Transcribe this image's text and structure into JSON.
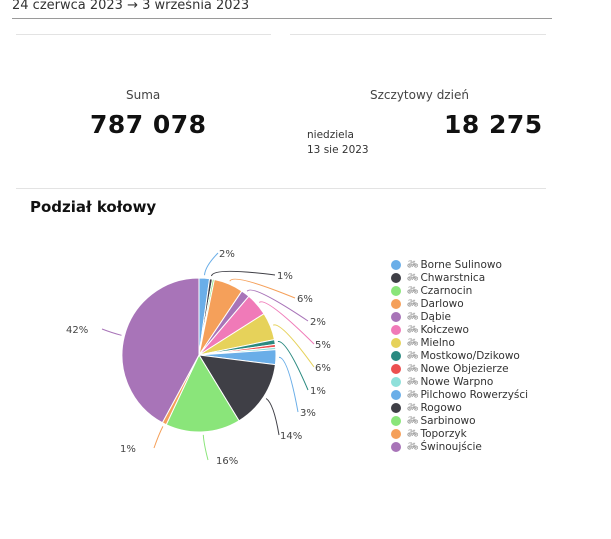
{
  "header": {
    "date_range": "24 czerwca 2023 → 3 września 2023"
  },
  "stats": {
    "total": {
      "label": "Suma",
      "value": "787 078"
    },
    "peak_day": {
      "label": "Szczytowy dzień",
      "weekday": "niedziela",
      "date": "13 sie 2023",
      "value": "18 275"
    }
  },
  "section": {
    "title": "Podział kołowy"
  },
  "legend": {
    "icon": "bicycle-icon",
    "items": [
      {
        "label": "Borne Sulinowo",
        "color": "#6aaee8"
      },
      {
        "label": "Chwarstnica",
        "color": "#3f3f46"
      },
      {
        "label": "Czarnocin",
        "color": "#8ae57a"
      },
      {
        "label": "Darlowo",
        "color": "#f5a05a"
      },
      {
        "label": "Dąbie",
        "color": "#a874b8"
      },
      {
        "label": "Kołczewo",
        "color": "#f07ab8"
      },
      {
        "label": "Mielno",
        "color": "#e6d25a"
      },
      {
        "label": "Mostkowo/Dzikowo",
        "color": "#2a8a80"
      },
      {
        "label": "Nowe Objezierze",
        "color": "#ec5050"
      },
      {
        "label": "Nowe Warpno",
        "color": "#8ee0da"
      },
      {
        "label": "Pilchowo Rowerzyści",
        "color": "#6aaee8"
      },
      {
        "label": "Rogowo",
        "color": "#3f3f46"
      },
      {
        "label": "Sarbinowo",
        "color": "#8ae57a"
      },
      {
        "label": "Toporzyk",
        "color": "#f5a05a"
      },
      {
        "label": "Świnoujście",
        "color": "#a874b8"
      }
    ]
  },
  "chart_data": {
    "type": "pie",
    "title": "Podział kołowy",
    "categories": [
      "Borne Sulinowo",
      "Chwarstnica",
      "Czarnocin",
      "Darlowo",
      "Dąbie",
      "Kołczewo",
      "Mielno",
      "Mostkowo/Dzikowo",
      "Nowe Objezierze",
      "Nowe Warpno",
      "Pilchowo Rowerzyści",
      "Rogowo",
      "Sarbinowo",
      "Toporzyk",
      "Świnoujście"
    ],
    "values": [
      2.2,
      0.6,
      0.4,
      6.2,
      1.8,
      4.8,
      5.8,
      1.0,
      0.6,
      0.5,
      3.1,
      14.3,
      15.7,
      0.9,
      42.1
    ],
    "labels_shown": [
      "2%",
      "1%",
      "",
      "6%",
      "2%",
      "5%",
      "6%",
      "1%",
      "",
      "",
      "3%",
      "14%",
      "16%",
      "1%",
      "42%"
    ],
    "legend_position": "right"
  },
  "labels": {
    "l0": "2%",
    "l1": "1%",
    "l3": "6%",
    "l4": "2%",
    "l5": "5%",
    "l6": "6%",
    "l7": "1%",
    "l10": "3%",
    "l11": "14%",
    "l12": "16%",
    "l13": "1%",
    "l14": "42%"
  }
}
